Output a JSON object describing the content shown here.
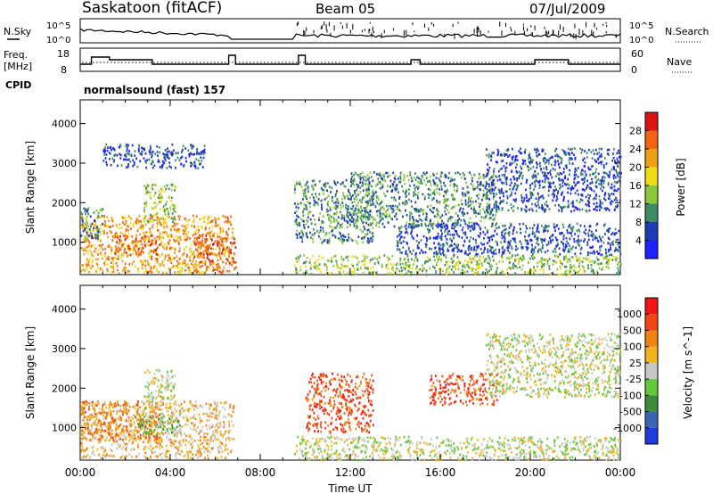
{
  "header": {
    "station": "Saskatoon (fitACF)",
    "beam": "Beam 05",
    "date": "07/Jul/2009"
  },
  "top_panels": {
    "nsky_label": "N.Sky",
    "nsky_ticks": [
      "10^5",
      "10^0"
    ],
    "nsearch_label": "N.Search",
    "freq_label_1": "Freq.",
    "freq_label_2": "[MHz]",
    "freq_ticks": [
      "18",
      "8"
    ],
    "nave_ticks": [
      "60",
      "0"
    ],
    "nave_label": "Nave",
    "cpid_label": "CPID",
    "mode_text": "normalsound (fast) 157"
  },
  "chart_data": [
    {
      "type": "heatmap",
      "quantity": "Power",
      "colorbar_label": "Power [dB]",
      "colorbar_ticks": [
        "4",
        "8",
        "12",
        "16",
        "20",
        "24",
        "28"
      ],
      "colorbar_colors": [
        "#1e1eff",
        "#1e3cb4",
        "#3c8c64",
        "#8cc83c",
        "#f0dc14",
        "#f0a014",
        "#f06414",
        "#dc1414"
      ],
      "ylabel": "Slant Range [km]",
      "yticks": [
        1000,
        2000,
        3000,
        4000
      ],
      "ylim": [
        180,
        4600
      ],
      "xlim_hours": [
        0,
        24
      ],
      "regions": [
        {
          "t0": 0.0,
          "t1": 6.8,
          "r0": 250,
          "r1": 1700,
          "level": 5
        },
        {
          "t0": 0.0,
          "t1": 1.0,
          "r0": 1100,
          "r1": 1900,
          "level": 2
        },
        {
          "t0": 1.5,
          "t1": 3.5,
          "r0": 700,
          "r1": 1200,
          "level": 6
        },
        {
          "t0": 2.8,
          "t1": 4.2,
          "r0": 1500,
          "r1": 2500,
          "level": 3
        },
        {
          "t0": 1.0,
          "t1": 5.5,
          "r0": 2900,
          "r1": 3500,
          "level": 1
        },
        {
          "t0": 5.0,
          "t1": 6.9,
          "r0": 280,
          "r1": 1200,
          "level": 6
        },
        {
          "t0": 9.5,
          "t1": 24.0,
          "r0": 200,
          "r1": 700,
          "level": 3
        },
        {
          "t0": 9.5,
          "t1": 13.0,
          "r0": 1000,
          "r1": 2600,
          "level": 2
        },
        {
          "t0": 12.0,
          "t1": 18.5,
          "r0": 1400,
          "r1": 2800,
          "level": 2
        },
        {
          "t0": 14.0,
          "t1": 24.0,
          "r0": 700,
          "r1": 1500,
          "level": 1
        },
        {
          "t0": 18.0,
          "t1": 24.0,
          "r0": 1800,
          "r1": 3400,
          "level": 1
        }
      ]
    },
    {
      "type": "heatmap",
      "quantity": "Velocity",
      "colorbar_label": "Velocity [m s^-1]",
      "colorbar_ticks": [
        "1000",
        "500",
        "100",
        "25",
        "-25",
        "-100",
        "-500",
        "-1000"
      ],
      "colorbar_colors": [
        "#1e3cdc",
        "#3c64b4",
        "#3c8c3c",
        "#64c83c",
        "#c8c8c8",
        "#f0b41e",
        "#f08214",
        "#f04614",
        "#f01414"
      ],
      "ylabel": "Slant Range [km]",
      "yticks": [
        1000,
        2000,
        3000,
        4000
      ],
      "ylim": [
        180,
        4600
      ],
      "xlim_hours": [
        0,
        24
      ],
      "xlabel": "Time UT",
      "xticks": [
        "00:00",
        "04:00",
        "08:00",
        "12:00",
        "16:00",
        "20:00",
        "00:00"
      ],
      "regions": [
        {
          "t0": 0.0,
          "t1": 6.8,
          "r0": 250,
          "r1": 1700,
          "level": 5
        },
        {
          "t0": 0.0,
          "t1": 3.5,
          "r0": 700,
          "r1": 1700,
          "level": 6
        },
        {
          "t0": 2.5,
          "t1": 4.5,
          "r0": 800,
          "r1": 1400,
          "level": 3
        },
        {
          "t0": 2.8,
          "t1": 4.2,
          "r0": 1500,
          "r1": 2500,
          "level": 4
        },
        {
          "t0": 9.5,
          "t1": 24.0,
          "r0": 200,
          "r1": 800,
          "level": 4
        },
        {
          "t0": 10.0,
          "t1": 13.0,
          "r0": 900,
          "r1": 2400,
          "level": 7
        },
        {
          "t0": 15.5,
          "t1": 18.5,
          "r0": 1600,
          "r1": 2400,
          "level": 7
        },
        {
          "t0": 18.0,
          "t1": 24.0,
          "r0": 1800,
          "r1": 3400,
          "level": 4
        }
      ]
    }
  ]
}
